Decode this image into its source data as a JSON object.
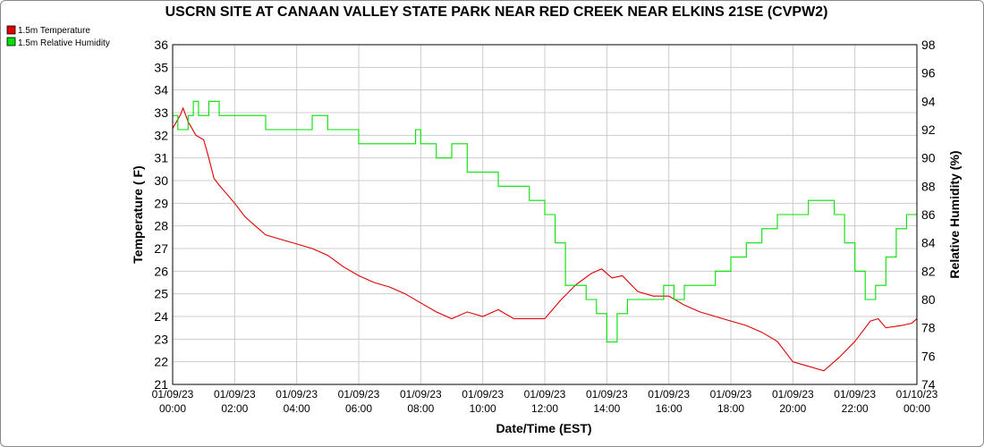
{
  "chart_data": {
    "type": "line",
    "title": "USCRN SITE AT CANAAN VALLEY STATE PARK NEAR RED CREEK NEAR ELKINS 21SE (CVPW2)",
    "xlabel": "Date/Time (EST)",
    "ylabel_left": "Temperature ( F)",
    "ylabel_right": "Relative Humidity (%)",
    "legend_position": "top-left",
    "grid": true,
    "x_range": [
      "2023-01-09 00:00",
      "2023-01-10 00:00"
    ],
    "x_ticks": [
      {
        "date": "01/09/23",
        "time": "00:00"
      },
      {
        "date": "01/09/23",
        "time": "02:00"
      },
      {
        "date": "01/09/23",
        "time": "04:00"
      },
      {
        "date": "01/09/23",
        "time": "06:00"
      },
      {
        "date": "01/09/23",
        "time": "08:00"
      },
      {
        "date": "01/09/23",
        "time": "10:00"
      },
      {
        "date": "01/09/23",
        "time": "12:00"
      },
      {
        "date": "01/09/23",
        "time": "14:00"
      },
      {
        "date": "01/09/23",
        "time": "16:00"
      },
      {
        "date": "01/09/23",
        "time": "18:00"
      },
      {
        "date": "01/09/23",
        "time": "20:00"
      },
      {
        "date": "01/09/23",
        "time": "22:00"
      },
      {
        "date": "01/10/23",
        "time": "00:00"
      }
    ],
    "y_left_range": [
      21,
      36
    ],
    "y_left_ticks": [
      21,
      22,
      23,
      24,
      25,
      26,
      27,
      28,
      29,
      30,
      31,
      32,
      33,
      34,
      35,
      36
    ],
    "y_right_range": [
      74,
      98
    ],
    "y_right_ticks": [
      74,
      76,
      78,
      80,
      82,
      84,
      86,
      88,
      90,
      92,
      94,
      96,
      98
    ],
    "series": [
      {
        "name": "1.5m Temperature",
        "color": "#e00000",
        "axis": "left",
        "x": [
          "2023-01-09 00:00",
          "2023-01-09 00:15",
          "2023-01-09 00:20",
          "2023-01-09 00:30",
          "2023-01-09 00:45",
          "2023-01-09 01:00",
          "2023-01-09 01:10",
          "2023-01-09 01:20",
          "2023-01-09 01:30",
          "2023-01-09 01:45",
          "2023-01-09 02:00",
          "2023-01-09 02:20",
          "2023-01-09 02:40",
          "2023-01-09 03:00",
          "2023-01-09 03:30",
          "2023-01-09 04:00",
          "2023-01-09 04:30",
          "2023-01-09 05:00",
          "2023-01-09 05:30",
          "2023-01-09 06:00",
          "2023-01-09 06:30",
          "2023-01-09 07:00",
          "2023-01-09 07:30",
          "2023-01-09 08:00",
          "2023-01-09 08:30",
          "2023-01-09 09:00",
          "2023-01-09 09:30",
          "2023-01-09 10:00",
          "2023-01-09 10:30",
          "2023-01-09 11:00",
          "2023-01-09 11:30",
          "2023-01-09 12:00",
          "2023-01-09 12:30",
          "2023-01-09 13:00",
          "2023-01-09 13:30",
          "2023-01-09 13:50",
          "2023-01-09 14:10",
          "2023-01-09 14:30",
          "2023-01-09 15:00",
          "2023-01-09 15:30",
          "2023-01-09 16:00",
          "2023-01-09 16:30",
          "2023-01-09 17:00",
          "2023-01-09 17:30",
          "2023-01-09 18:00",
          "2023-01-09 18:30",
          "2023-01-09 19:00",
          "2023-01-09 19:30",
          "2023-01-09 20:00",
          "2023-01-09 20:15",
          "2023-01-09 20:30",
          "2023-01-09 21:00",
          "2023-01-09 21:30",
          "2023-01-09 22:00",
          "2023-01-09 22:30",
          "2023-01-09 22:45",
          "2023-01-09 23:00",
          "2023-01-09 23:30",
          "2023-01-09 23:50",
          "2023-01-10 00:00"
        ],
        "y": [
          32.3,
          32.9,
          33.2,
          32.6,
          32.0,
          31.8,
          31.0,
          30.1,
          29.8,
          29.4,
          29.0,
          28.4,
          28.0,
          27.6,
          27.4,
          27.2,
          27.0,
          26.7,
          26.2,
          25.8,
          25.5,
          25.3,
          25.0,
          24.6,
          24.2,
          23.9,
          24.2,
          24.0,
          24.3,
          23.9,
          23.9,
          23.9,
          24.7,
          25.4,
          25.9,
          26.1,
          25.7,
          25.8,
          25.1,
          24.9,
          24.9,
          24.5,
          24.2,
          24.0,
          23.8,
          23.6,
          23.3,
          22.9,
          22.0,
          21.9,
          21.8,
          21.6,
          22.2,
          22.9,
          23.8,
          23.9,
          23.5,
          23.6,
          23.7,
          23.9
        ]
      },
      {
        "name": "1.5m Relative Humidity",
        "color": "#00e000",
        "axis": "right",
        "x": [
          "2023-01-09 00:00",
          "2023-01-09 00:10",
          "2023-01-09 00:15",
          "2023-01-09 00:30",
          "2023-01-09 00:40",
          "2023-01-09 00:50",
          "2023-01-09 01:00",
          "2023-01-09 01:10",
          "2023-01-09 01:20",
          "2023-01-09 01:30",
          "2023-01-09 02:30",
          "2023-01-09 03:00",
          "2023-01-09 03:30",
          "2023-01-09 04:00",
          "2023-01-09 04:30",
          "2023-01-09 05:00",
          "2023-01-09 05:30",
          "2023-01-09 06:00",
          "2023-01-09 06:30",
          "2023-01-09 07:00",
          "2023-01-09 07:30",
          "2023-01-09 07:50",
          "2023-01-09 08:00",
          "2023-01-09 08:30",
          "2023-01-09 09:00",
          "2023-01-09 09:30",
          "2023-01-09 10:00",
          "2023-01-09 10:30",
          "2023-01-09 11:00",
          "2023-01-09 11:30",
          "2023-01-09 12:00",
          "2023-01-09 12:20",
          "2023-01-09 12:40",
          "2023-01-09 13:00",
          "2023-01-09 13:20",
          "2023-01-09 13:40",
          "2023-01-09 14:00",
          "2023-01-09 14:20",
          "2023-01-09 14:40",
          "2023-01-09 15:00",
          "2023-01-09 15:30",
          "2023-01-09 15:50",
          "2023-01-09 16:10",
          "2023-01-09 16:30",
          "2023-01-09 17:00",
          "2023-01-09 17:30",
          "2023-01-09 18:00",
          "2023-01-09 18:30",
          "2023-01-09 19:00",
          "2023-01-09 19:30",
          "2023-01-09 20:00",
          "2023-01-09 20:30",
          "2023-01-09 21:00",
          "2023-01-09 21:20",
          "2023-01-09 21:40",
          "2023-01-09 22:00",
          "2023-01-09 22:20",
          "2023-01-09 22:40",
          "2023-01-09 23:00",
          "2023-01-09 23:20",
          "2023-01-09 23:40",
          "2023-01-10 00:00"
        ],
        "y": [
          93,
          92,
          92,
          93,
          94,
          93,
          93,
          94,
          94,
          93,
          93,
          92,
          92,
          92,
          93,
          92,
          92,
          91,
          91,
          91,
          91,
          92,
          91,
          90,
          91,
          89,
          89,
          88,
          88,
          87,
          86,
          84,
          81,
          81,
          80,
          79,
          77,
          79,
          80,
          80,
          80,
          81,
          80,
          81,
          81,
          82,
          83,
          84,
          85,
          86,
          86,
          87,
          87,
          86,
          84,
          82,
          80,
          81,
          83,
          85,
          86,
          86
        ]
      }
    ]
  }
}
